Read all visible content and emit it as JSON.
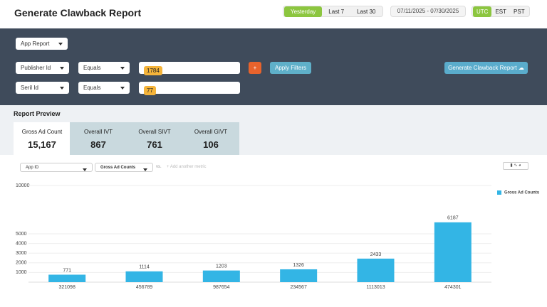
{
  "header": {
    "title": "Generate Clawback Report",
    "ranges": [
      "Yesterday",
      "Last 7",
      "Last 30"
    ],
    "active_range_index": 0,
    "date_range": "07/11/2025 - 07/30/2025",
    "timezones": [
      "UTC",
      "EST",
      "PST"
    ],
    "active_timezone_index": 0
  },
  "filters": {
    "report_type": "App Report",
    "rows": [
      {
        "field": "Publisher Id",
        "operator": "Equals",
        "values": [
          "1784"
        ]
      },
      {
        "field": "Seril Id",
        "operator": "Equals",
        "values": [
          "77"
        ]
      }
    ],
    "add_button": "+",
    "apply_button": "Apply Filters",
    "generate_button": "Generate Clawback Report"
  },
  "preview": {
    "title": "Report Preview",
    "active_card_index": 0,
    "cards": [
      {
        "label": "Gross Ad Count",
        "value": "15,167"
      },
      {
        "label": "Overall IVT",
        "value": "867"
      },
      {
        "label": "Overall SIVT",
        "value": "761"
      },
      {
        "label": "Overall GIVT",
        "value": "106"
      }
    ]
  },
  "chart_controls": {
    "dimension": "App ID",
    "metric": "Gross Ad Counts",
    "separator": "vs.",
    "add_metric": "+ Add another metric"
  },
  "chart_data": {
    "type": "bar",
    "categories": [
      "321098",
      "456789",
      "987654",
      "234567",
      "1113013",
      "474301"
    ],
    "series": [
      {
        "name": "Gross Ad Counts",
        "color": "#33b5e5",
        "values": [
          771,
          1114,
          1203,
          1326,
          2433,
          6187
        ]
      }
    ],
    "ylim": [
      0,
      10000
    ],
    "yticks": [
      1000,
      2000,
      3000,
      4000,
      5000,
      10000
    ],
    "grid": true,
    "legend": "top-right"
  }
}
